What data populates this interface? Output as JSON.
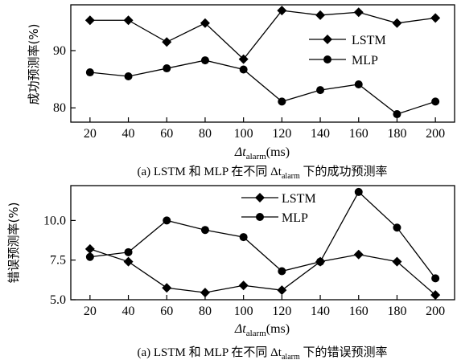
{
  "chart_data": [
    {
      "type": "line",
      "x": [
        20,
        40,
        60,
        80,
        100,
        120,
        140,
        160,
        180,
        200
      ],
      "series": [
        {
          "name": "LSTM",
          "values": [
            95.3,
            95.3,
            91.5,
            94.8,
            88.5,
            97.0,
            96.2,
            96.7,
            94.8,
            95.7
          ]
        },
        {
          "name": "MLP",
          "values": [
            86.2,
            85.5,
            86.9,
            88.3,
            86.7,
            81.1,
            83.1,
            84.1,
            78.9,
            81.1
          ]
        }
      ],
      "ylabel": "成功预测率(%)",
      "xlabel_main": "Δt",
      "xlabel_sub": "alarm",
      "xlabel_unit": "(ms)",
      "ylim": [
        77.5,
        98
      ],
      "yticks": [
        80,
        90
      ],
      "xticks": [
        20,
        40,
        60,
        80,
        100,
        120,
        140,
        160,
        180,
        200
      ],
      "caption_pre": "(a) LSTM 和  MLP 在不同  Δt",
      "caption_sub": "alarm",
      "caption_post": " 下的成功预测率",
      "legend": "right-center"
    },
    {
      "type": "line",
      "x": [
        20,
        40,
        60,
        80,
        100,
        120,
        140,
        160,
        180,
        200
      ],
      "series": [
        {
          "name": "LSTM",
          "values": [
            8.2,
            7.4,
            5.75,
            5.45,
            5.9,
            5.6,
            7.4,
            7.85,
            7.4,
            5.3
          ]
        },
        {
          "name": "MLP",
          "values": [
            7.7,
            8.0,
            10.0,
            9.4,
            8.95,
            6.8,
            7.4,
            11.8,
            9.55,
            6.35
          ]
        }
      ],
      "ylabel": "错误预测率(%)",
      "xlabel_main": "Δt",
      "xlabel_sub": "alarm",
      "xlabel_unit": "(ms)",
      "ylim": [
        5.0,
        12.2
      ],
      "yticks": [
        5.0,
        7.5,
        10.0
      ],
      "xticks": [
        20,
        40,
        60,
        80,
        100,
        120,
        140,
        160,
        180,
        200
      ],
      "caption_pre": "(a) LSTM 和  MLP 在不同  Δt",
      "caption_sub": "alarm",
      "caption_post": " 下的错误预测率",
      "legend": "top-center"
    }
  ]
}
